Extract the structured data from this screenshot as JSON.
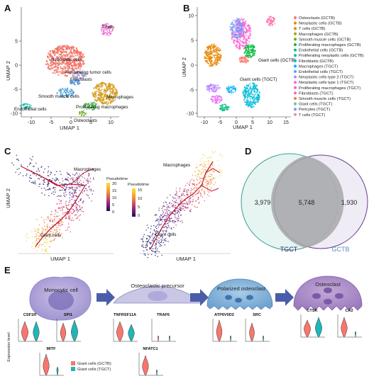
{
  "panels": {
    "a": "A",
    "b": "B",
    "c": "C",
    "d": "D",
    "e": "E"
  },
  "axes": {
    "umap1": "UMAP 1",
    "umap2": "UMAP 2",
    "pseudotime": "Pseudotime"
  },
  "panel_a": {
    "ticks_x": [
      "-10",
      "-5",
      "0",
      "5",
      "10"
    ],
    "ticks_y": [
      "5",
      "0",
      "-5",
      "-10"
    ],
    "clusters": {
      "tcells": "T cells",
      "neoplastic": "Neoplastic cells",
      "proliferating_tumor": "Proliferating tumor cells",
      "fibroblasts": "Fibroblasts",
      "smooth_muscle": "Smooth muscle cells",
      "macrophages": "Macrophages",
      "proliferating_macrophages": "Proliferating macrophages",
      "endothelial": "Endothelial cells",
      "osteoclasts": "Osteoclasts"
    }
  },
  "panel_b": {
    "ticks_x": [
      "-10",
      "-5",
      "0",
      "5",
      "10",
      "15"
    ],
    "ticks_y": [
      "10",
      "5",
      "0",
      "-5",
      "-10"
    ],
    "labels": {
      "giant_gctb": "Giant cells (GCTB)",
      "giant_tgct": "Giant cells (TGCT)"
    },
    "legend": [
      {
        "label": "Osteoclasts (GCTB)",
        "color": "#f8766d"
      },
      {
        "label": "Neoplastic cells (GCTB)",
        "color": "#e58700"
      },
      {
        "label": "T cells (GCTB)",
        "color": "#c99800"
      },
      {
        "label": "Macrophages (GCTB)",
        "color": "#a3a500"
      },
      {
        "label": "Smooth muscle cells (GCTB)",
        "color": "#6bb100"
      },
      {
        "label": "Proliferating macrophages (GCTB)",
        "color": "#00ba38"
      },
      {
        "label": "Endothelial cells (GCTB)",
        "color": "#00bf7d"
      },
      {
        "label": "Proliferating neoplastic cells (GCTB)",
        "color": "#00c0af"
      },
      {
        "label": "Fibroblasts (GCTB)",
        "color": "#00bcd8"
      },
      {
        "label": "Macrophages (TGCT)",
        "color": "#00b0f6"
      },
      {
        "label": "Endothelial cells (TGCT)",
        "color": "#619cff"
      },
      {
        "label": "Neoplastic cells type 2 (TGCT)",
        "color": "#b983ff"
      },
      {
        "label": "Neoplastic cells type 1 (TGCT)",
        "color": "#e76bf3"
      },
      {
        "label": "Proliferating macrophages (TGCT)",
        "color": "#fd61d1"
      },
      {
        "label": "Fibroblasts (TGCT)",
        "color": "#ff67a4"
      },
      {
        "label": "Smooth muscle cells (TGCT)",
        "color": "#f0823e"
      },
      {
        "label": "Giant cells (TGCT)",
        "color": "#55c6a6"
      },
      {
        "label": "Pericytes (TGCT)",
        "color": "#7a9fd8"
      },
      {
        "label": "T cells (TGCT)",
        "color": "#d98fc4"
      }
    ]
  },
  "panel_c": {
    "left": {
      "macrophages": "Macrophages",
      "giant": "Giant cells",
      "scale": [
        "20",
        "15",
        "10",
        "5",
        "0"
      ]
    },
    "right": {
      "macrophages": "Macrophages",
      "giant": "Giant cells",
      "scale": [
        "15",
        "10",
        "5",
        "0"
      ]
    }
  },
  "panel_d": {
    "left": "3,979",
    "middle": "5,748",
    "right": "1,930",
    "tgct": "TGCT",
    "gctb": "GCTB"
  },
  "panel_e": {
    "stages": [
      "Monocytic cell",
      "Osteoclastic precursor",
      "Polarized osteoclast",
      "Osteoclast"
    ],
    "genes": [
      "CSF1R",
      "SPI1",
      "TNFRSF11A",
      "TRAF6",
      "ATP6V0D2",
      "SRC",
      "CTSK",
      "CA2",
      "MITF",
      "NFATC1"
    ],
    "ylabel": "Expression level",
    "legend": [
      {
        "label": "Giant cells (GCTB)",
        "color": "#f8766d"
      },
      {
        "label": "Giant cells (TGCT)",
        "color": "#22b5b8"
      }
    ]
  }
}
